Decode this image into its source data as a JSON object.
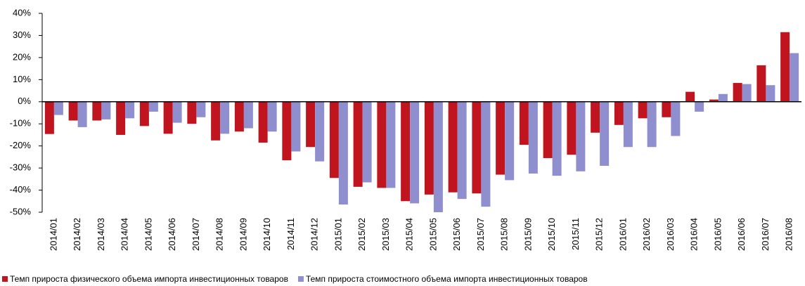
{
  "chart_data": {
    "type": "bar",
    "categories": [
      "2014/01",
      "2014/02",
      "2014/03",
      "2014/04",
      "2014/05",
      "2014/06",
      "2014/07",
      "2014/08",
      "2014/09",
      "2014/10",
      "2014/11",
      "2014/12",
      "2015/01",
      "2015/02",
      "2015/03",
      "2015/04",
      "2015/05",
      "2015/06",
      "2015/07",
      "2015/08",
      "2015/09",
      "2015/10",
      "2015/11",
      "2015/12",
      "2016/01",
      "2016/02",
      "2016/03",
      "2016/04",
      "2016/05",
      "2016/06",
      "2016/07",
      "2016/08"
    ],
    "series": [
      {
        "name": "Темп прироста физического объема импорта инвестиционных товаров",
        "color": "#c0141e",
        "values": [
          -14.6,
          -8.5,
          -8.5,
          -15,
          -11,
          -14.5,
          -10,
          -17.5,
          -13.5,
          -18.5,
          -26.5,
          -20.5,
          -34.5,
          -38.5,
          -39,
          -45,
          -42,
          -41,
          -41.5,
          -33,
          -19.5,
          -25.5,
          -24,
          -14,
          -10.5,
          -7.5,
          -7,
          4.5,
          1,
          8.5,
          16.5,
          31.5
        ]
      },
      {
        "name": "Темп прироста стоимостного  объема импорта инвестиционных товаров",
        "color": "#8f8fd0",
        "values": [
          -6,
          -11.5,
          -8,
          -7.5,
          -4.5,
          -9.5,
          -7,
          -14.5,
          -12,
          -13.5,
          -22.5,
          -27,
          -46.5,
          -36.5,
          -39,
          -46,
          -50,
          -44,
          -47.5,
          -35.5,
          -32.5,
          -33.5,
          -31.5,
          -29,
          -20.5,
          -20.5,
          -15.5,
          -4.5,
          3.5,
          8,
          7.5,
          22
        ]
      }
    ],
    "ylim": [
      -50,
      40
    ],
    "yticks": [
      {
        "value": -50,
        "label": "-50%"
      },
      {
        "value": -40,
        "label": "-40%"
      },
      {
        "value": -30,
        "label": "-30%"
      },
      {
        "value": -20,
        "label": "-20%"
      },
      {
        "value": -10,
        "label": "-10%"
      },
      {
        "value": 0,
        "label": "0%"
      },
      {
        "value": 10,
        "label": "10%"
      },
      {
        "value": 20,
        "label": "20%"
      },
      {
        "value": 30,
        "label": "30%"
      },
      {
        "value": 40,
        "label": "40%"
      }
    ],
    "grid": false,
    "legend": "bottom"
  }
}
